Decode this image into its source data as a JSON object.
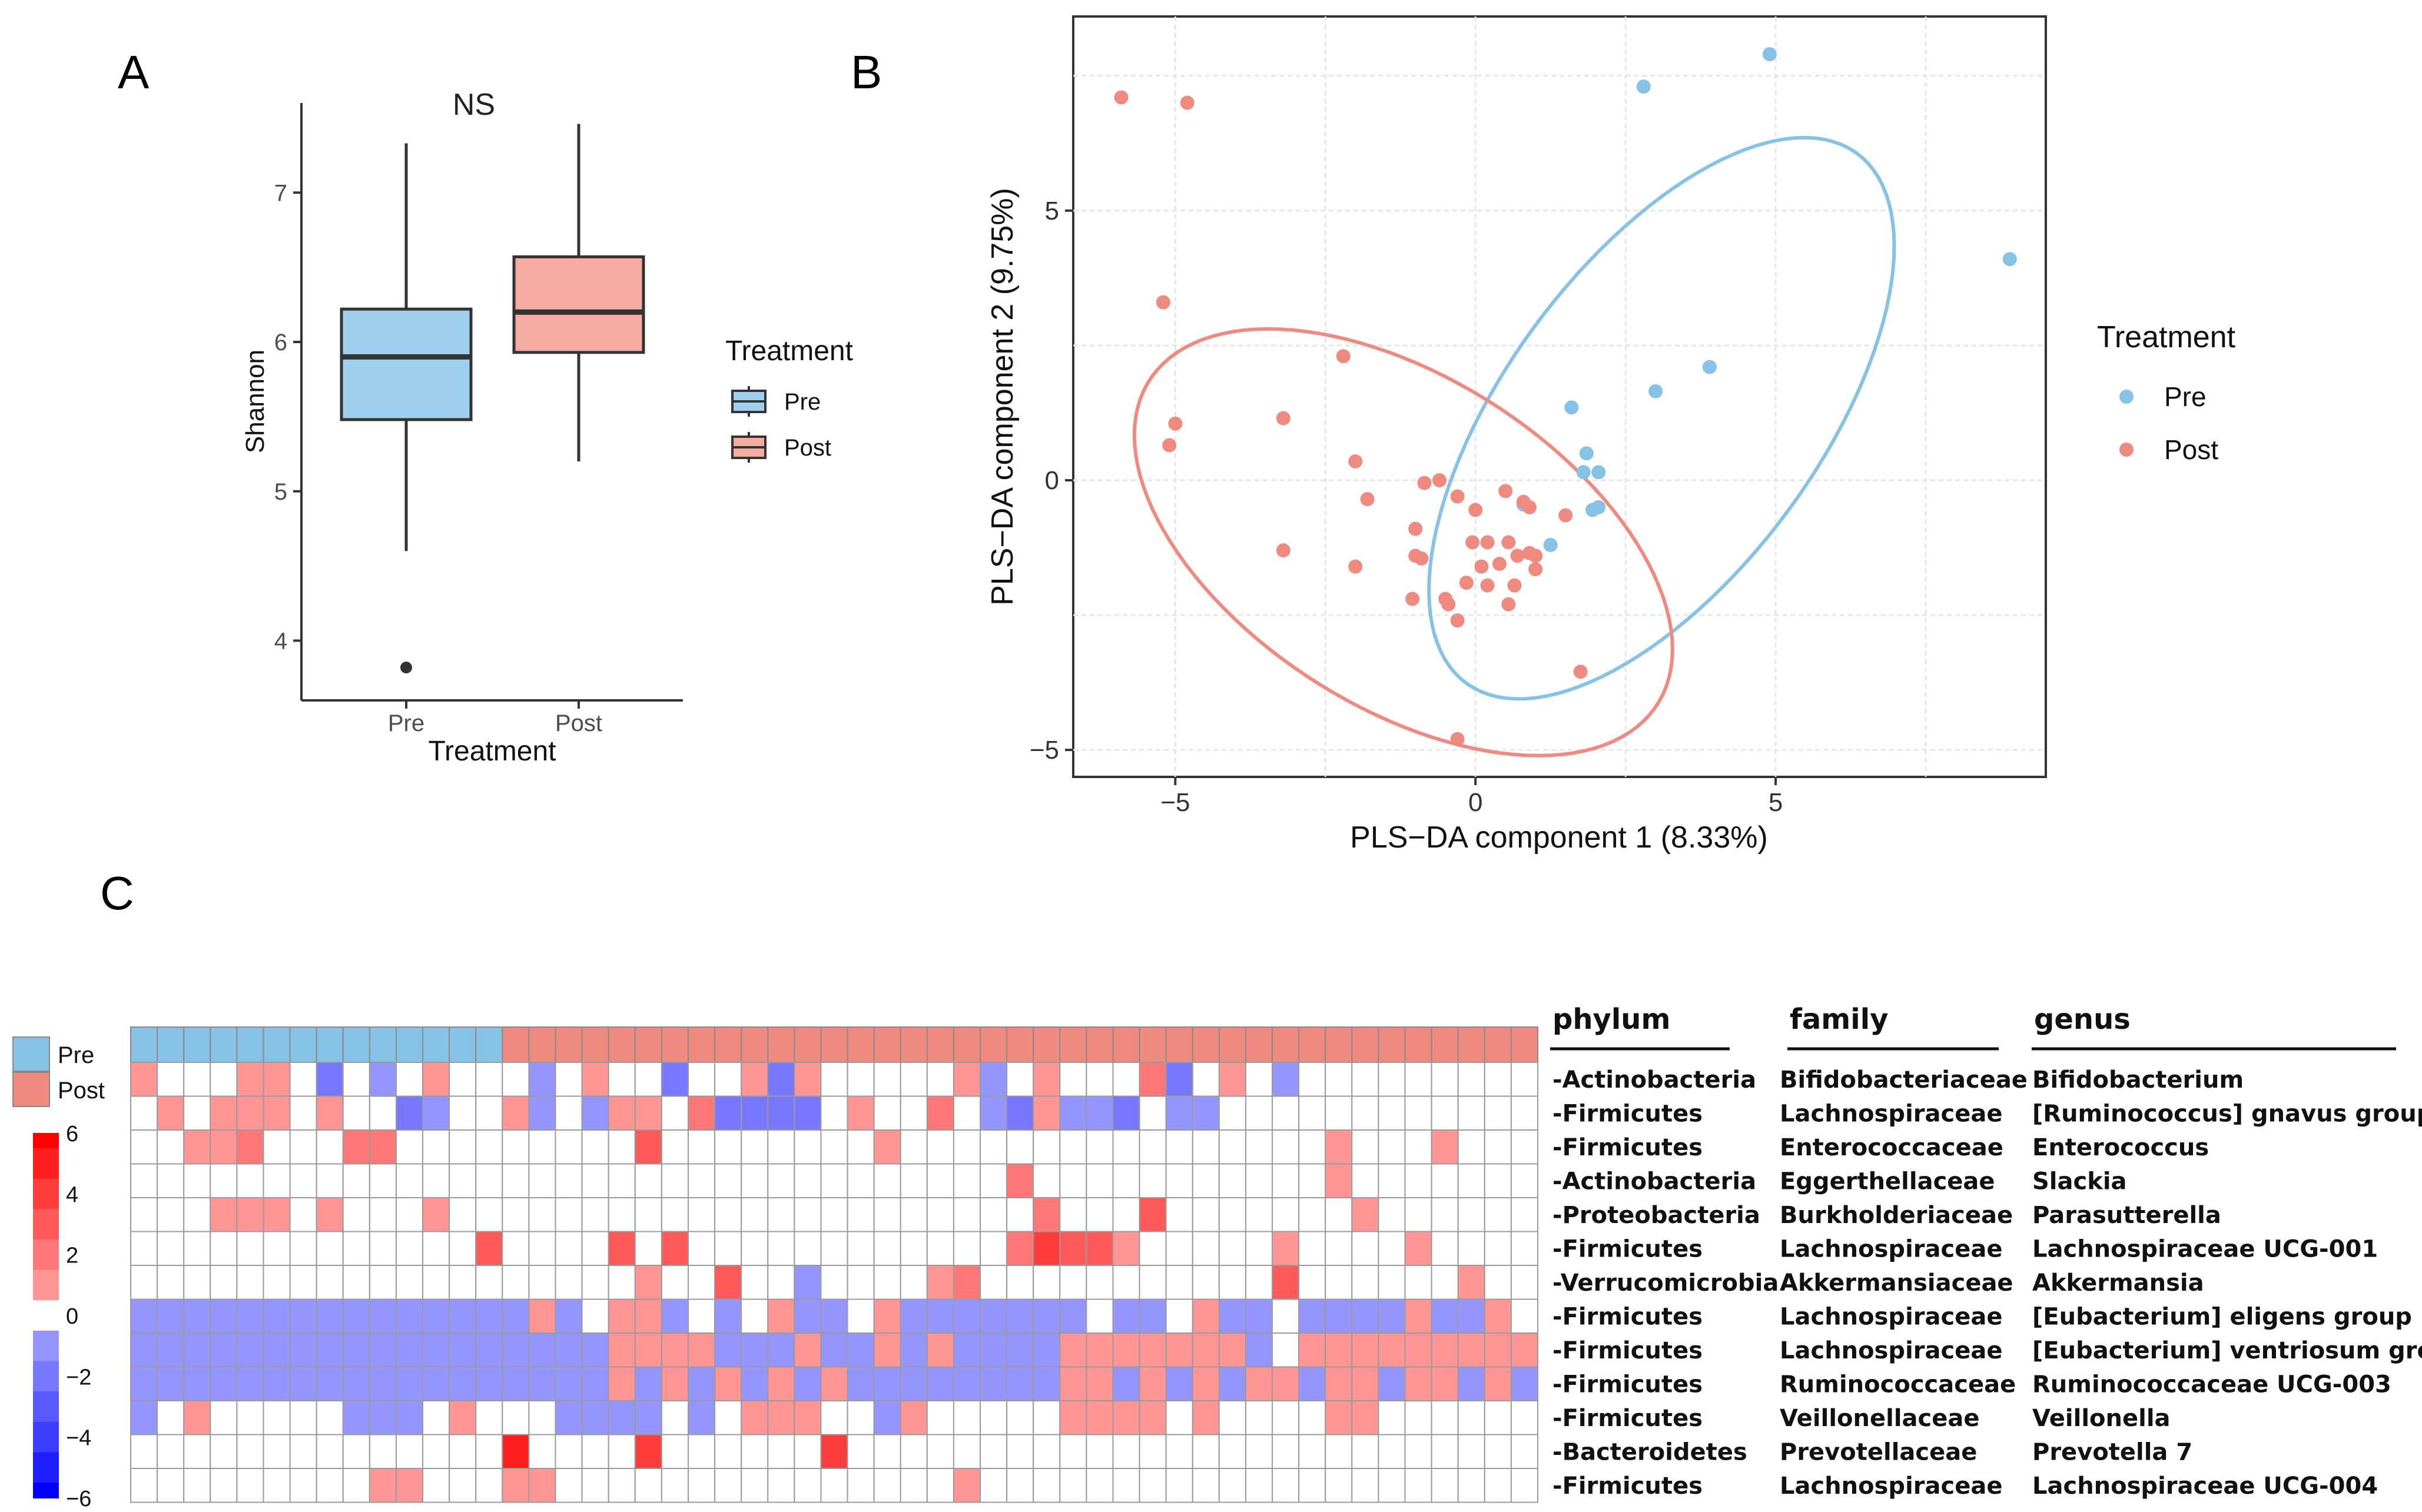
{
  "colors": {
    "pre": "#86c2e6",
    "post": "#ee8a80",
    "pre_box": "#9fd0ee",
    "post_box": "#f5aaa2",
    "grid": "#e6e6e6",
    "heat_low": "#0000ff",
    "heat_high": "#ff0000"
  },
  "panel_labels": {
    "a": "A",
    "b": "B",
    "c": "C"
  },
  "chart_data": [
    {
      "panel": "A",
      "type": "box",
      "title": "NS",
      "xlabel": "Treatment",
      "ylabel": "Shannon",
      "ylim": [
        3.6,
        7.6
      ],
      "yticks": [
        4,
        5,
        6,
        7
      ],
      "categories": [
        "Pre",
        "Post"
      ],
      "boxes": [
        {
          "name": "Pre",
          "min": 4.6,
          "q1": 5.48,
          "median": 5.9,
          "q3": 6.22,
          "max": 7.33,
          "outliers": [
            3.82
          ]
        },
        {
          "name": "Post",
          "min": 5.2,
          "q1": 5.93,
          "median": 6.2,
          "q3": 6.57,
          "max": 7.46,
          "outliers": []
        }
      ],
      "legend": {
        "title": "Treatment",
        "entries": [
          "Pre",
          "Post"
        ],
        "position": "right"
      }
    },
    {
      "panel": "B",
      "type": "scatter",
      "xlabel": "PLS−DA component 1 (8.33%)",
      "ylabel": "PLS−DA component 2 (9.75%)",
      "xlim": [
        -6.7,
        9.5
      ],
      "ylim": [
        -5.5,
        8.6
      ],
      "xticks": [
        -5,
        0,
        5
      ],
      "yticks": [
        -5,
        0,
        5
      ],
      "legend": {
        "title": "Treatment",
        "entries": [
          "Pre",
          "Post"
        ],
        "position": "right"
      },
      "series": [
        {
          "name": "Pre",
          "points": [
            [
              4.9,
              7.9
            ],
            [
              2.8,
              7.3
            ],
            [
              8.9,
              4.1
            ],
            [
              3.9,
              2.1
            ],
            [
              3.0,
              1.65
            ],
            [
              1.6,
              1.35
            ],
            [
              1.85,
              0.5
            ],
            [
              1.8,
              0.15
            ],
            [
              2.05,
              0.15
            ],
            [
              2.05,
              -0.5
            ],
            [
              1.95,
              -0.55
            ],
            [
              0.8,
              -0.45
            ],
            [
              1.25,
              -1.2
            ]
          ]
        },
        {
          "name": "Post",
          "points": [
            [
              -5.9,
              7.1
            ],
            [
              -4.8,
              7.0
            ],
            [
              -5.2,
              3.3
            ],
            [
              -5.0,
              1.05
            ],
            [
              -5.1,
              0.65
            ],
            [
              -3.2,
              1.15
            ],
            [
              -2.2,
              2.3
            ],
            [
              -2.0,
              0.35
            ],
            [
              -1.8,
              -0.35
            ],
            [
              -3.2,
              -1.3
            ],
            [
              -2.0,
              -1.6
            ],
            [
              -1.0,
              -0.9
            ],
            [
              -1.0,
              -1.4
            ],
            [
              -0.9,
              -1.45
            ],
            [
              -0.85,
              -0.05
            ],
            [
              -0.6,
              0.0
            ],
            [
              -0.3,
              -0.3
            ],
            [
              0.0,
              -0.55
            ],
            [
              0.5,
              -0.2
            ],
            [
              0.8,
              -0.4
            ],
            [
              0.9,
              -0.5
            ],
            [
              1.5,
              -0.65
            ],
            [
              -0.05,
              -1.15
            ],
            [
              0.2,
              -1.15
            ],
            [
              0.55,
              -1.15
            ],
            [
              0.7,
              -1.4
            ],
            [
              0.9,
              -1.35
            ],
            [
              1.0,
              -1.4
            ],
            [
              0.1,
              -1.6
            ],
            [
              0.4,
              -1.55
            ],
            [
              -0.15,
              -1.9
            ],
            [
              0.2,
              -1.95
            ],
            [
              0.65,
              -1.95
            ],
            [
              1.0,
              -1.65
            ],
            [
              -1.05,
              -2.2
            ],
            [
              -0.5,
              -2.2
            ],
            [
              -0.45,
              -2.3
            ],
            [
              -0.3,
              -2.6
            ],
            [
              0.55,
              -2.3
            ],
            [
              1.75,
              -3.55
            ],
            [
              -0.3,
              -4.8
            ]
          ]
        }
      ],
      "ellipses": [
        {
          "name": "Pre",
          "center": [
            3.1,
            1.15
          ],
          "semi_major": 5.9,
          "semi_minor": 2.7,
          "angle_deg": 58
        },
        {
          "name": "Post",
          "center": [
            -1.2,
            -1.15
          ],
          "semi_major": 5.2,
          "semi_minor": 2.95,
          "angle_deg": -38
        }
      ]
    },
    {
      "panel": "C",
      "type": "heatmap",
      "group_annotation": {
        "Pre": 14,
        "Post": 39
      },
      "scale": {
        "min": -6,
        "max": 6,
        "ticks": [
          6,
          4,
          2,
          0,
          -2,
          -4,
          -6
        ]
      },
      "rows": [
        {
          "phylum": "-Actinobacteria",
          "family": "Bifidobacteriaceae",
          "genus": "Bifidobacterium"
        },
        {
          "phylum": "-Firmicutes",
          "family": "Lachnospiraceae",
          "genus": "[Ruminococcus] gnavus group"
        },
        {
          "phylum": "-Firmicutes",
          "family": "Enterococcaceae",
          "genus": "Enterococcus"
        },
        {
          "phylum": "-Actinobacteria",
          "family": "Eggerthellaceae",
          "genus": "Slackia"
        },
        {
          "phylum": "-Proteobacteria",
          "family": "Burkholderiaceae",
          "genus": "Parasutterella"
        },
        {
          "phylum": "-Firmicutes",
          "family": "Lachnospiraceae",
          "genus": "Lachnospiraceae UCG-001"
        },
        {
          "phylum": "-Verrucomicrobia",
          "family": "Akkermansiaceae",
          "genus": "Akkermansia"
        },
        {
          "phylum": "-Firmicutes",
          "family": "Lachnospiraceae",
          "genus": "[Eubacterium] eligens group"
        },
        {
          "phylum": "-Firmicutes",
          "family": "Lachnospiraceae",
          "genus": "[Eubacterium] ventriosum group"
        },
        {
          "phylum": "-Firmicutes",
          "family": "Ruminococcaceae",
          "genus": "Ruminococcaceae UCG-003"
        },
        {
          "phylum": "-Firmicutes",
          "family": "Veillonellaceae",
          "genus": "Veillonella"
        },
        {
          "phylum": "-Bacteroidetes",
          "family": "Prevotellaceae",
          "genus": "Prevotella 7"
        },
        {
          "phylum": "-Firmicutes",
          "family": "Lachnospiraceae",
          "genus": "Lachnospiraceae UCG-004"
        }
      ],
      "column_headers": {
        "phylum": "phylum",
        "family": "family",
        "genus": "genus"
      },
      "values": [
        "1000110-20-101000-10100-2001-21000001-1010002-2010-1",
        "0101110100-2-1001-10-11102-2-2-2-2010020-1-21-1-1-20-1-1",
        "0011200022-0-0000000030000000010000000000000000100010",
        "0000000000000000000000000000000002000000000001000000000",
        "0001110100010000000000000000000000200030000000100000000",
        "00000000000003000030300000000000024331000001000010000",
        "0000000000000000000100300-10000120000000000030000001000",
        "-1-1-1-1-1-1-1-1-1-1-1-1-1-1-11-1011-10-101-1-101-1-1-1-1-1-1-10-1-101-1-10-1-1-1-11-1-11",
        "-1-1-1-1-1-1-1-1-1-1-1-1-1-1-1-1-1-11111-1-1-11-1-11-11-1-1-1-11111111-10111111111",
        "-1-1-1-1-1-1-1-1-1-1-1-1-1-1-1-1-1-11-11-11-11-11-1-1-1-1-1-1-1-111-11-11-111-111-111-11-1-11",
        "-10100000-1-1-101000-1-1-1-10-1011100-1100000111101000011",
        "00000000000000500004000000400000000000000000000000000000",
        "00000000011000110000000000000001000000000000000000000000"
      ]
    }
  ],
  "heatmap_sizes": {
    "pre": 14,
    "post": 39
  },
  "icons": {
    "legend_box": "boxplot-key-icon",
    "legend_point": "point-key-icon"
  }
}
